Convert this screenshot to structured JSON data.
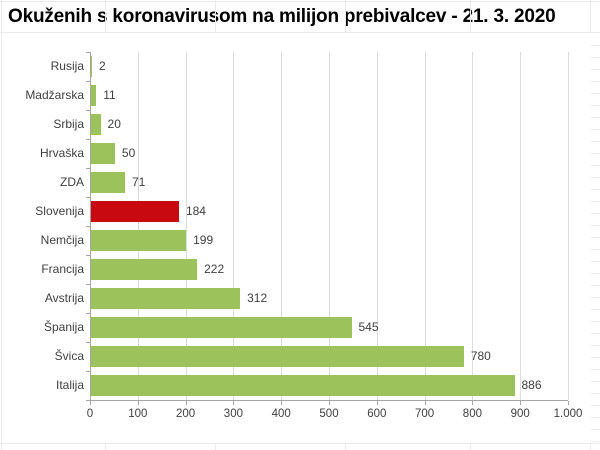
{
  "title": "Okuženih s koronavirusom na milijon prebivalcev - 21. 3. 2020",
  "colors": {
    "bar_default": "#9cc25b",
    "bar_highlight": "#c80a10",
    "gridline": "#dcdcdc",
    "axis": "#a6a6a6",
    "label": "#3f3f3f",
    "title": "#000000",
    "background": "#ffffff"
  },
  "chart_data": {
    "type": "bar",
    "orientation": "horizontal",
    "title": "Okuženih s koronavirusom na milijon prebivalcev - 21. 3. 2020",
    "categories": [
      "Rusija",
      "Madžarska",
      "Srbija",
      "Hrvaška",
      "ZDA",
      "Slovenija",
      "Nemčija",
      "Francija",
      "Avstrija",
      "Španija",
      "Švica",
      "Italija"
    ],
    "values": [
      2,
      11,
      20,
      50,
      71,
      184,
      199,
      222,
      312,
      545,
      780,
      886
    ],
    "value_labels": [
      "2",
      "11",
      "20",
      "50",
      "71",
      "184",
      "199",
      "222",
      "312",
      "545",
      "780",
      "886"
    ],
    "highlighted_category": "Slovenija",
    "xlim": [
      0,
      1000
    ],
    "x_tick_step": 100,
    "x_tick_labels": [
      "0",
      "100",
      "200",
      "300",
      "400",
      "500",
      "600",
      "700",
      "800",
      "900",
      "1.000"
    ],
    "xlabel": "",
    "ylabel": "",
    "grid": true,
    "legend": false
  }
}
